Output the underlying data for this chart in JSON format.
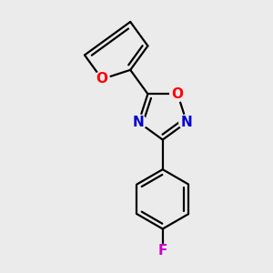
{
  "background_color": "#ebebeb",
  "bond_color": "#000000",
  "bond_width": 1.6,
  "atom_labels": {
    "furan_O": {
      "symbol": "O",
      "color": "#ff0000"
    },
    "oxad_O": {
      "symbol": "O",
      "color": "#ff0000"
    },
    "oxad_N4": {
      "symbol": "N",
      "color": "#0000cd"
    },
    "oxad_N2": {
      "symbol": "N",
      "color": "#0000cd"
    },
    "phenyl_F": {
      "symbol": "F",
      "color": "#cc00cc"
    }
  },
  "fig_width": 3.0,
  "fig_height": 3.0,
  "dpi": 100
}
